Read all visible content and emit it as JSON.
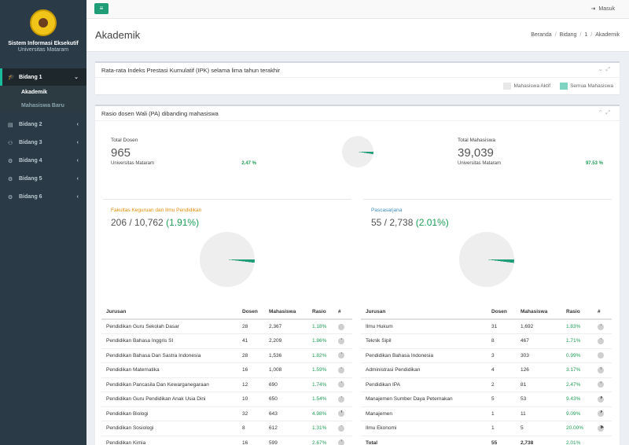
{
  "sidebar": {
    "title": "Sistem Informasi Eksekutif",
    "subtitle": "Universitas Mataram",
    "items": [
      {
        "label": "Bidang 1",
        "active": true,
        "subitems": [
          {
            "label": "Akademik",
            "current": true
          },
          {
            "label": "Mahasiswa Baru",
            "current": false
          }
        ]
      },
      {
        "label": "Bidang 2"
      },
      {
        "label": "Bidang 3"
      },
      {
        "label": "Bidang 4"
      },
      {
        "label": "Bidang 5"
      },
      {
        "label": "Bidang 6"
      }
    ]
  },
  "topbar": {
    "toggle_icon": "hamburger-icon",
    "login_label": "Masuk"
  },
  "header": {
    "title": "Akademik",
    "breadcrumb": [
      "Beranda",
      "Bidang",
      "1",
      "Akademik"
    ]
  },
  "box_ipk": {
    "title": "Rata-rata Indeks Prestasi Kumulatif (IPK) selama lima tahun terakhir",
    "legend": [
      {
        "label": "Mahasiswa Aktif",
        "color": "#e8e8e8"
      },
      {
        "label": "Semua Mahasiswa",
        "color": "#7fd4c1"
      }
    ]
  },
  "box_rasio": {
    "title": "Rasio dosen Wali (PA) dibanding mahasiswa",
    "dosen": {
      "label": "Total Dosen",
      "value": "965",
      "institution": "Universitas Mataram",
      "pct": "2.47 %"
    },
    "mahasiswa": {
      "label": "Total Mahasiswa",
      "value": "39,039",
      "institution": "Universitas Mataram",
      "pct": "97.53 %"
    },
    "overall_ratio": 0.0247,
    "fkip": {
      "title": "Fakultas Keguruan dan Ilmu Pendidikan",
      "value": "206 / 10,762",
      "pct": "(1.91%)",
      "ratio": 0.0191
    },
    "pasca": {
      "title": "Pascasarjana",
      "value": "55 / 2,738",
      "pct": "(2.01%)",
      "ratio": 0.0201
    },
    "table_headers": [
      "Jurusan",
      "Dosen",
      "Mahasiswa",
      "Rasio",
      "#"
    ],
    "fkip_rows": [
      {
        "jurusan": "Pendidikan Guru Sekolah Dasar",
        "dosen": "28",
        "mahasiswa": "2,367",
        "rasio": "1.18%"
      },
      {
        "jurusan": "Pendidikan Bahasa Inggris SI",
        "dosen": "41",
        "mahasiswa": "2,209",
        "rasio": "1.86%"
      },
      {
        "jurusan": "Pendidikan Bahasa Dan Sastra Indonesia",
        "dosen": "28",
        "mahasiswa": "1,536",
        "rasio": "1.82%"
      },
      {
        "jurusan": "Pendidikan Matematika",
        "dosen": "16",
        "mahasiswa": "1,008",
        "rasio": "1.59%"
      },
      {
        "jurusan": "Pendidikan Pancasila Dan Kewarganegaraan",
        "dosen": "12",
        "mahasiswa": "690",
        "rasio": "1.74%"
      },
      {
        "jurusan": "Pendidikan Guru Pendidikan Anak Usia Dini",
        "dosen": "10",
        "mahasiswa": "650",
        "rasio": "1.54%"
      },
      {
        "jurusan": "Pendidikan Biologi",
        "dosen": "32",
        "mahasiswa": "643",
        "rasio": "4.98%"
      },
      {
        "jurusan": "Pendidikan Sosiologi",
        "dosen": "8",
        "mahasiswa": "612",
        "rasio": "1.31%"
      },
      {
        "jurusan": "Pendidikan Kimia",
        "dosen": "16",
        "mahasiswa": "599",
        "rasio": "2.67%"
      }
    ],
    "pasca_rows": [
      {
        "jurusan": "Ilmu Hukum",
        "dosen": "31",
        "mahasiswa": "1,692",
        "rasio": "1.83%"
      },
      {
        "jurusan": "Teknik Sipil",
        "dosen": "8",
        "mahasiswa": "467",
        "rasio": "1.71%"
      },
      {
        "jurusan": "Pendidikan Bahasa Indonesia",
        "dosen": "3",
        "mahasiswa": "303",
        "rasio": "0.99%"
      },
      {
        "jurusan": "Administrasi Pendidikan",
        "dosen": "4",
        "mahasiswa": "126",
        "rasio": "3.17%"
      },
      {
        "jurusan": "Pendidikan IPA",
        "dosen": "2",
        "mahasiswa": "81",
        "rasio": "2.47%"
      },
      {
        "jurusan": "Manajemen Sumber Daya Peternakan",
        "dosen": "5",
        "mahasiswa": "53",
        "rasio": "9.43%"
      },
      {
        "jurusan": "Manajemen",
        "dosen": "1",
        "mahasiswa": "11",
        "rasio": "9.09%"
      },
      {
        "jurusan": "Ilmu Ekonomi",
        "dosen": "1",
        "mahasiswa": "5",
        "rasio": "20.00%"
      }
    ],
    "pasca_total": {
      "label": "Total",
      "dosen": "55",
      "mahasiswa": "2,738",
      "rasio": "2.01%"
    }
  },
  "colors": {
    "accent": "#1f9d76",
    "sidebar_bg": "#2b3a47",
    "pct_green": "#1f9d56",
    "fkip_orange": "#e08e0b",
    "pasca_blue": "#3c8dbc"
  }
}
